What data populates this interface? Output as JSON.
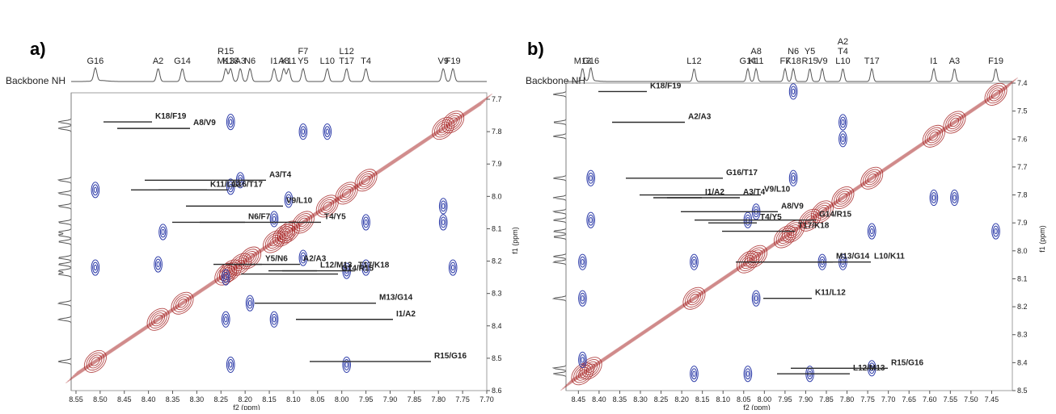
{
  "colors": {
    "diagonal_contours": "#a31b1b",
    "crosspeaks": "#2b3aa8",
    "connector_lines": "#2b2b2b",
    "projection_trace": "#555555"
  },
  "chart_data": [
    {
      "type": "heatmap",
      "panel": "a)",
      "projection_label": "Backbone NH",
      "xlabel": "f2 (ppm)",
      "ylabel": "f1 (ppm)",
      "xlim": [
        8.56,
        7.7
      ],
      "ylim": [
        8.6,
        7.68
      ],
      "xticks": [
        "8.55",
        "8.50",
        "8.45",
        "8.40",
        "8.35",
        "8.30",
        "8.25",
        "8.20",
        "8.15",
        "8.10",
        "8.05",
        "8.00",
        "7.95",
        "7.90",
        "7.85",
        "7.80",
        "7.75",
        "7.70"
      ],
      "yticks": [
        "7.7",
        "7.8",
        "7.9",
        "8.0",
        "8.1",
        "8.2",
        "8.3",
        "8.4",
        "8.5",
        "8.6"
      ],
      "residue_shifts": [
        {
          "labels": [
            "G16"
          ],
          "ppm": 8.51
        },
        {
          "labels": [
            "A2"
          ],
          "ppm": 8.38
        },
        {
          "labels": [
            "G14"
          ],
          "ppm": 8.33
        },
        {
          "labels": [
            "R15",
            "M13"
          ],
          "ppm": 8.24
        },
        {
          "labels": [
            "K18"
          ],
          "ppm": 8.23
        },
        {
          "labels": [
            "A3"
          ],
          "ppm": 8.21
        },
        {
          "labels": [
            "N6"
          ],
          "ppm": 8.19
        },
        {
          "labels": [
            "I1"
          ],
          "ppm": 8.14
        },
        {
          "labels": [
            "A8"
          ],
          "ppm": 8.12
        },
        {
          "labels": [
            "K11"
          ],
          "ppm": 8.11
        },
        {
          "labels": [
            "F7",
            "Y5"
          ],
          "ppm": 8.08
        },
        {
          "labels": [
            "L10"
          ],
          "ppm": 8.03
        },
        {
          "labels": [
            "L12",
            "T17"
          ],
          "ppm": 7.99
        },
        {
          "labels": [
            "T4"
          ],
          "ppm": 7.95
        },
        {
          "labels": [
            "V9"
          ],
          "ppm": 7.79
        },
        {
          "labels": [
            "F19"
          ],
          "ppm": 7.77
        }
      ],
      "diagonal_peaks": [
        8.51,
        8.38,
        8.33,
        8.24,
        8.23,
        8.21,
        8.19,
        8.14,
        8.12,
        8.11,
        8.08,
        8.03,
        7.99,
        7.95,
        7.79,
        7.77
      ],
      "crosspeaks": [
        {
          "f2": 8.23,
          "f1": 7.77
        },
        {
          "f2": 8.03,
          "f1": 7.8
        },
        {
          "f2": 8.08,
          "f1": 7.8
        },
        {
          "f2": 8.51,
          "f1": 7.98
        },
        {
          "f2": 8.21,
          "f1": 7.95
        },
        {
          "f2": 8.23,
          "f1": 7.97
        },
        {
          "f2": 8.11,
          "f1": 8.01
        },
        {
          "f2": 7.95,
          "f1": 8.08
        },
        {
          "f2": 7.79,
          "f1": 8.03
        },
        {
          "f2": 8.14,
          "f1": 8.07
        },
        {
          "f2": 8.37,
          "f1": 8.11
        },
        {
          "f2": 8.38,
          "f1": 8.21
        },
        {
          "f2": 8.51,
          "f1": 8.22
        },
        {
          "f2": 8.08,
          "f1": 8.19
        },
        {
          "f2": 7.99,
          "f1": 8.23
        },
        {
          "f2": 7.95,
          "f1": 8.22
        },
        {
          "f2": 7.77,
          "f1": 8.22
        },
        {
          "f2": 8.24,
          "f1": 8.25
        },
        {
          "f2": 8.19,
          "f1": 8.33
        },
        {
          "f2": 8.24,
          "f1": 8.38
        },
        {
          "f2": 8.14,
          "f1": 8.38
        },
        {
          "f2": 8.23,
          "f1": 8.52
        },
        {
          "f2": 7.99,
          "f1": 8.52
        },
        {
          "f2": 7.79,
          "f1": 8.08
        }
      ],
      "walk_connections": [
        {
          "label": "K18/F19",
          "f1": 7.77
        },
        {
          "label": "A8/V9",
          "f1": 7.79
        },
        {
          "label": "G16/T17",
          "f1": 7.98
        },
        {
          "label": "A3/T4",
          "f1": 7.95
        },
        {
          "label": "K11/L12",
          "f1": 7.98
        },
        {
          "label": "N6/F7",
          "f1": 8.08
        },
        {
          "label": "V9/L10",
          "f1": 8.03
        },
        {
          "label": "T4/Y5",
          "f1": 8.08
        },
        {
          "label": "Y5/N6",
          "f1": 8.21
        },
        {
          "label": "A2/A3",
          "f1": 8.21
        },
        {
          "label": "G14/R15",
          "f1": 8.24
        },
        {
          "label": "M13/G14",
          "f1": 8.33
        },
        {
          "label": "L12/M13",
          "f1": 8.23
        },
        {
          "label": "T17/K18",
          "f1": 8.23
        },
        {
          "label": "I1/A2",
          "f1": 8.38
        },
        {
          "label": "R15/G16",
          "f1": 8.51
        }
      ]
    },
    {
      "type": "heatmap",
      "panel": "b)",
      "projection_label": "Backbone NH",
      "xlabel": "f2 (ppm)",
      "ylabel": "f1 (ppm)",
      "xlim": [
        8.48,
        7.4
      ],
      "ylim": [
        8.5,
        7.4
      ],
      "xticks": [
        "8.45",
        "8.40",
        "8.35",
        "8.30",
        "8.25",
        "8.20",
        "8.15",
        "8.10",
        "8.05",
        "8.00",
        "7.95",
        "7.90",
        "7.85",
        "7.80",
        "7.75",
        "7.70",
        "7.65",
        "7.60",
        "7.55",
        "7.50",
        "7.45"
      ],
      "yticks": [
        "7.4",
        "7.5",
        "7.6",
        "7.7",
        "7.8",
        "7.9",
        "8.0",
        "8.1",
        "8.2",
        "8.3",
        "8.4",
        "8.5"
      ],
      "residue_shifts": [
        {
          "labels": [
            "M13"
          ],
          "ppm": 8.44
        },
        {
          "labels": [
            "G16"
          ],
          "ppm": 8.42
        },
        {
          "labels": [
            "L12"
          ],
          "ppm": 8.17
        },
        {
          "labels": [
            "G14"
          ],
          "ppm": 8.04
        },
        {
          "labels": [
            "A8",
            "K11"
          ],
          "ppm": 8.02
        },
        {
          "labels": [
            "F7"
          ],
          "ppm": 7.95
        },
        {
          "labels": [
            "N6",
            "K18"
          ],
          "ppm": 7.93
        },
        {
          "labels": [
            "Y5",
            "R15"
          ],
          "ppm": 7.89
        },
        {
          "labels": [
            "V9"
          ],
          "ppm": 7.86
        },
        {
          "labels": [
            "A2",
            "T4",
            "L10"
          ],
          "ppm": 7.81
        },
        {
          "labels": [
            "T17"
          ],
          "ppm": 7.74
        },
        {
          "labels": [
            "I1"
          ],
          "ppm": 7.59
        },
        {
          "labels": [
            "A3"
          ],
          "ppm": 7.54
        },
        {
          "labels": [
            "F19"
          ],
          "ppm": 7.44
        }
      ],
      "diagonal_peaks": [
        8.44,
        8.42,
        8.17,
        8.04,
        8.02,
        7.95,
        7.93,
        7.89,
        7.86,
        7.81,
        7.74,
        7.59,
        7.54,
        7.44
      ],
      "crosspeaks": [
        {
          "f2": 7.93,
          "f1": 7.43
        },
        {
          "f2": 7.81,
          "f1": 7.54
        },
        {
          "f2": 7.81,
          "f1": 7.6
        },
        {
          "f2": 8.42,
          "f1": 7.74
        },
        {
          "f2": 7.93,
          "f1": 7.74
        },
        {
          "f2": 7.59,
          "f1": 7.81
        },
        {
          "f2": 7.54,
          "f1": 7.81
        },
        {
          "f2": 8.02,
          "f1": 7.86
        },
        {
          "f2": 8.04,
          "f1": 7.89
        },
        {
          "f2": 8.42,
          "f1": 7.89
        },
        {
          "f2": 7.74,
          "f1": 7.93
        },
        {
          "f2": 7.44,
          "f1": 7.93
        },
        {
          "f2": 8.44,
          "f1": 8.04
        },
        {
          "f2": 8.17,
          "f1": 8.04
        },
        {
          "f2": 7.81,
          "f1": 8.04
        },
        {
          "f2": 7.86,
          "f1": 8.04
        },
        {
          "f2": 8.44,
          "f1": 8.17
        },
        {
          "f2": 8.02,
          "f1": 8.17
        },
        {
          "f2": 8.17,
          "f1": 8.44
        },
        {
          "f2": 8.04,
          "f1": 8.44
        },
        {
          "f2": 7.89,
          "f1": 8.44
        },
        {
          "f2": 7.74,
          "f1": 8.42
        },
        {
          "f2": 8.44,
          "f1": 8.39
        }
      ],
      "walk_connections": [
        {
          "label": "K18/F19",
          "f1": 7.43
        },
        {
          "label": "A2/A3",
          "f1": 7.54
        },
        {
          "label": "G16/T17",
          "f1": 7.74
        },
        {
          "label": "V9/L10",
          "f1": 7.8
        },
        {
          "label": "I1/A2",
          "f1": 7.81
        },
        {
          "label": "A3/T4",
          "f1": 7.81
        },
        {
          "label": "A8/V9",
          "f1": 7.86
        },
        {
          "label": "G14/R15",
          "f1": 7.89
        },
        {
          "label": "T4/Y5",
          "f1": 7.9
        },
        {
          "label": "T17/K18",
          "f1": 7.93
        },
        {
          "label": "M13/G14",
          "f1": 8.04
        },
        {
          "label": "L10/K11",
          "f1": 8.04
        },
        {
          "label": "K11/L12",
          "f1": 8.17
        },
        {
          "label": "L12/M13",
          "f1": 8.44
        },
        {
          "label": "R15/G16",
          "f1": 8.42
        }
      ]
    }
  ]
}
